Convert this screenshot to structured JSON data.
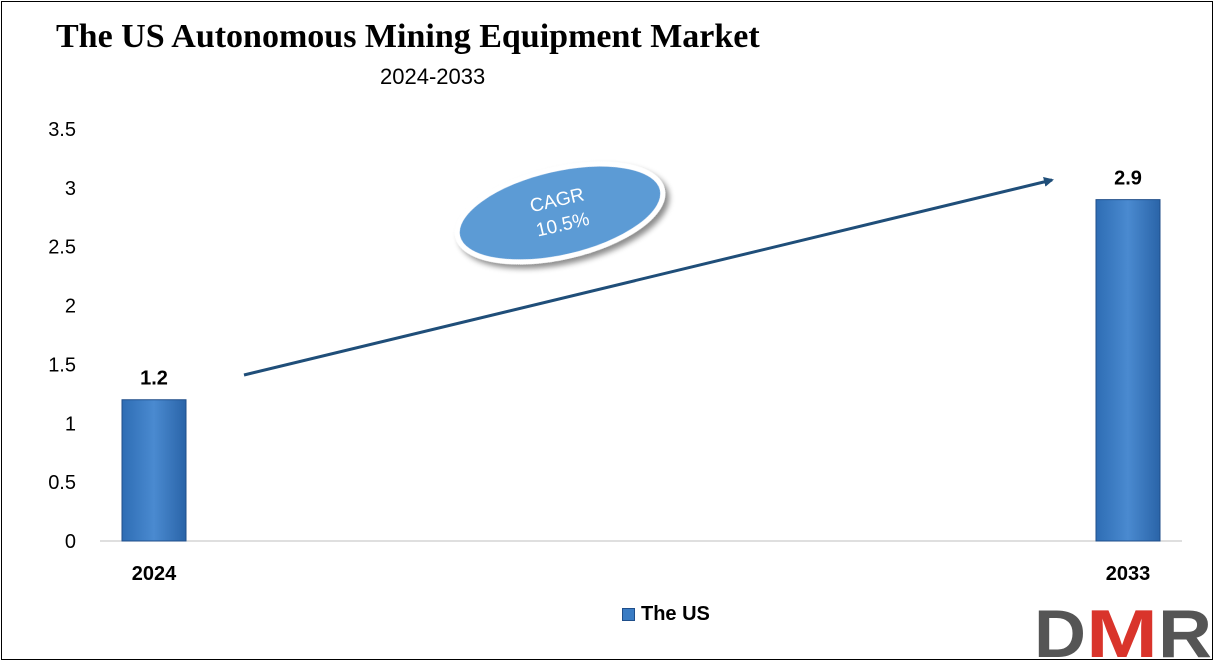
{
  "chart_data": {
    "type": "bar",
    "title": "The US Autonomous Mining Equipment Market",
    "subtitle": "2024-2033",
    "categories": [
      "2024",
      "2033"
    ],
    "series": [
      {
        "name": "The US",
        "values": [
          1.2,
          2.9
        ]
      }
    ],
    "data_labels": [
      "1.2",
      "2.9"
    ],
    "ylim": [
      0,
      3.5
    ],
    "yticks": [
      "0",
      "0.5",
      "1",
      "1.5",
      "2",
      "2.5",
      "3",
      "3.5"
    ],
    "grid": false,
    "legend": "bottom-center",
    "annotation": {
      "line1": "CAGR",
      "line2": "10.5%"
    },
    "colors": {
      "bar": "#3a7cc4",
      "bar_edge": "#1f4e8a",
      "arrow": "#1f4e79",
      "ellipse": "#5b9bd5"
    }
  },
  "logo": {
    "text": "DMR",
    "colors": {
      "d": "#555555",
      "m": "#d9342b",
      "r": "#555555"
    }
  }
}
